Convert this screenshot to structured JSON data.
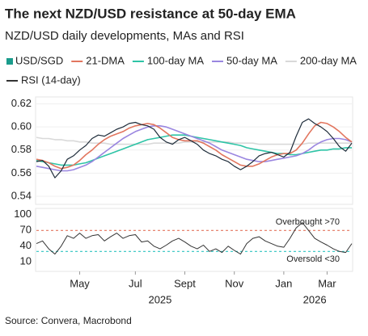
{
  "title": "The next NZD/USD resistance at 50-day EMA",
  "subtitle": "NZD/USD daily developments, MAs and RSI",
  "source": "Source: Convera, Macrobond",
  "chart_data": [
    {
      "type": "line",
      "grid": true,
      "categories": [
        null,
        null,
        null,
        null,
        null,
        null,
        null,
        null,
        null,
        null,
        null,
        null,
        null,
        null,
        null,
        null,
        null,
        null,
        null,
        null,
        null,
        null,
        null,
        null,
        null,
        null,
        null,
        null,
        null,
        null,
        null,
        null,
        null,
        null,
        null,
        null,
        null,
        null,
        null,
        null,
        null,
        null,
        null,
        null,
        null,
        null,
        null,
        null,
        null,
        null,
        null,
        null
      ],
      "ylim": [
        0.533,
        0.626
      ],
      "yticks": [
        0.54,
        0.56,
        0.58,
        {
          "value": 0.6,
          "label": "0.60"
        },
        0.62
      ],
      "series": [
        {
          "name": "200-day MA",
          "color": "#d9d9d9",
          "width": 1.6,
          "values": [
            0.591,
            0.59,
            0.59,
            0.589,
            0.589,
            0.588,
            0.588,
            0.587,
            0.587,
            0.586,
            0.586,
            0.586,
            0.585,
            0.585,
            0.585,
            0.585,
            0.585,
            0.585,
            0.585,
            0.586,
            0.586,
            0.586,
            0.586,
            0.586,
            0.587,
            0.587,
            0.587,
            0.587,
            0.587,
            0.587,
            0.587,
            0.587,
            0.586,
            0.586,
            0.586,
            0.586,
            0.585,
            0.585,
            0.585,
            0.585,
            0.585,
            0.585,
            0.585,
            0.585,
            0.586,
            0.586,
            0.586,
            0.586,
            0.586,
            0.586,
            0.586,
            0.586
          ]
        },
        {
          "name": "100-day MA",
          "color": "#2ec4a6",
          "width": 1.6,
          "values": [
            0.571,
            0.57,
            0.569,
            0.568,
            0.567,
            0.567,
            0.567,
            0.568,
            0.569,
            0.571,
            0.573,
            0.575,
            0.577,
            0.579,
            0.581,
            0.583,
            0.585,
            0.587,
            0.589,
            0.59,
            0.591,
            0.592,
            0.593,
            0.593,
            0.593,
            0.592,
            0.591,
            0.59,
            0.589,
            0.588,
            0.587,
            0.586,
            0.585,
            0.584,
            0.582,
            0.581,
            0.58,
            0.579,
            0.578,
            0.577,
            0.577,
            0.576,
            0.576,
            0.577,
            0.578,
            0.579,
            0.58,
            0.58,
            0.581,
            0.581,
            0.582,
            0.582
          ]
        },
        {
          "name": "50-day MA",
          "color": "#9a86e0",
          "width": 1.6,
          "values": [
            0.566,
            0.565,
            0.564,
            0.563,
            0.562,
            0.562,
            0.563,
            0.565,
            0.567,
            0.57,
            0.574,
            0.578,
            0.582,
            0.586,
            0.59,
            0.593,
            0.596,
            0.598,
            0.6,
            0.601,
            0.601,
            0.6,
            0.598,
            0.596,
            0.594,
            0.592,
            0.59,
            0.588,
            0.586,
            0.583,
            0.58,
            0.578,
            0.576,
            0.574,
            0.572,
            0.571,
            0.57,
            0.57,
            0.571,
            0.572,
            0.573,
            0.574,
            0.575,
            0.577,
            0.58,
            0.584,
            0.587,
            0.589,
            0.59,
            0.59,
            0.589,
            0.587
          ]
        },
        {
          "name": "21-DMA",
          "color": "#e2765f",
          "width": 1.6,
          "values": [
            0.572,
            0.571,
            0.569,
            0.566,
            0.564,
            0.565,
            0.567,
            0.571,
            0.576,
            0.58,
            0.585,
            0.589,
            0.592,
            0.594,
            0.596,
            0.599,
            0.601,
            0.602,
            0.603,
            0.602,
            0.599,
            0.595,
            0.591,
            0.589,
            0.588,
            0.588,
            0.588,
            0.586,
            0.583,
            0.58,
            0.576,
            0.573,
            0.57,
            0.567,
            0.566,
            0.566,
            0.568,
            0.571,
            0.574,
            0.576,
            0.577,
            0.577,
            0.58,
            0.586,
            0.594,
            0.601,
            0.604,
            0.603,
            0.6,
            0.596,
            0.591,
            0.587
          ]
        },
        {
          "name": "USD/SGD",
          "color": "#1f2d3b",
          "width": 1.2,
          "legend_marker": "square",
          "legend_color": "#1a9c8c",
          "values": [
            0.57,
            0.571,
            0.566,
            0.556,
            0.562,
            0.572,
            0.575,
            0.58,
            0.584,
            0.59,
            0.593,
            0.592,
            0.595,
            0.598,
            0.6,
            0.603,
            0.604,
            0.602,
            0.601,
            0.598,
            0.591,
            0.587,
            0.585,
            0.589,
            0.591,
            0.588,
            0.585,
            0.58,
            0.577,
            0.575,
            0.572,
            0.57,
            0.566,
            0.563,
            0.566,
            0.57,
            0.575,
            0.577,
            0.578,
            0.576,
            0.574,
            0.578,
            0.592,
            0.604,
            0.607,
            0.603,
            0.6,
            0.596,
            0.59,
            0.583,
            0.579,
            0.586
          ]
        }
      ]
    },
    {
      "type": "line",
      "grid": false,
      "categories": [
        null,
        null,
        null,
        null,
        null,
        null,
        null,
        "May",
        null,
        null,
        null,
        null,
        null,
        null,
        null,
        null,
        "Jul",
        null,
        null,
        null,
        null,
        null,
        null,
        null,
        "Sept",
        null,
        null,
        null,
        null,
        null,
        null,
        null,
        "Nov",
        null,
        null,
        null,
        null,
        null,
        null,
        null,
        "Jan",
        null,
        null,
        null,
        null,
        null,
        null,
        "Mar",
        null,
        null,
        null,
        null
      ],
      "categories2": [
        null,
        null,
        null,
        null,
        null,
        null,
        null,
        null,
        null,
        null,
        null,
        null,
        null,
        null,
        null,
        null,
        null,
        null,
        null,
        null,
        "2025",
        null,
        null,
        null,
        null,
        null,
        null,
        null,
        null,
        null,
        null,
        null,
        null,
        null,
        null,
        null,
        null,
        null,
        null,
        null,
        null,
        null,
        null,
        null,
        null,
        "2026",
        null,
        null,
        null,
        null,
        null,
        null
      ],
      "ylim": [
        -8,
        112
      ],
      "yticks": [
        10,
        40,
        70,
        100
      ],
      "ref_lines": [
        {
          "value": 70,
          "color": "#e2765f",
          "label": "Overbought >70",
          "label_side": "above"
        },
        {
          "value": 30,
          "color": "#2ec4c0",
          "label": "Oversold <30",
          "label_side": "below"
        }
      ],
      "series": [
        {
          "name": "RSI (14-day)",
          "color": "#333333",
          "width": 1,
          "values": [
            45,
            50,
            35,
            25,
            40,
            60,
            55,
            65,
            55,
            60,
            62,
            50,
            58,
            65,
            55,
            60,
            62,
            48,
            50,
            40,
            35,
            42,
            50,
            55,
            48,
            40,
            35,
            42,
            30,
            35,
            28,
            40,
            32,
            25,
            45,
            55,
            58,
            50,
            45,
            40,
            38,
            55,
            75,
            85,
            70,
            55,
            48,
            42,
            35,
            30,
            28,
            45
          ]
        }
      ]
    }
  ]
}
